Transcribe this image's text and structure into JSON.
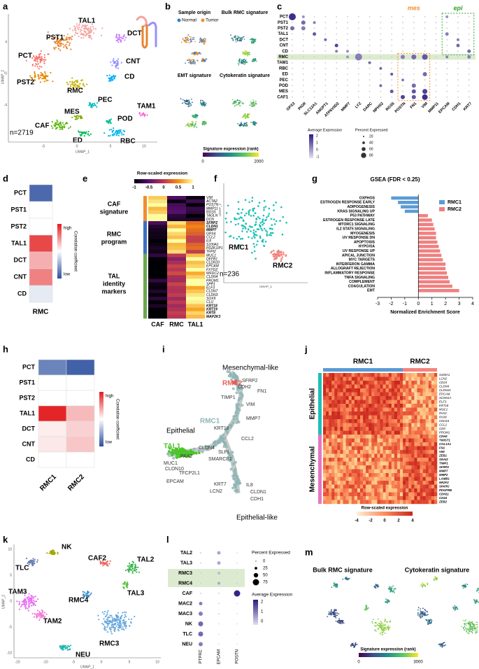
{
  "figure": {
    "letters": [
      "a",
      "b",
      "c",
      "d",
      "e",
      "f",
      "g",
      "h",
      "i",
      "j",
      "k",
      "l",
      "m"
    ],
    "a": {
      "clusters": [
        "PCT",
        "PST1",
        "TAL1",
        "DCT",
        "PST2",
        "RMC",
        "CNT",
        "CD",
        "PEC",
        "TAM1",
        "MES",
        "CAF",
        "POD",
        "ED",
        "RBC"
      ],
      "n": "n=2719",
      "xlabel": "UMAP_1",
      "ylabel": "UMAP_2",
      "xticks": [
        "-5",
        "0",
        "5",
        "10"
      ],
      "yticks": [
        "4",
        "0",
        "-4"
      ]
    },
    "b": {
      "titles": [
        "Sample origin",
        "Bulk RMC signature",
        "EMT signature",
        "Cytokeratin signature"
      ],
      "legend": [
        "Normal",
        "Tumor"
      ],
      "colorbar_title": "Signature expression (rank)",
      "colorbar_ticks": [
        "0",
        "2000"
      ]
    },
    "c": {
      "rows": [
        "PCT",
        "PST1",
        "PST2",
        "TAL1",
        "DCT",
        "CNT",
        "CD",
        "RMC",
        "TAM1",
        "RBC",
        "ED",
        "PEC",
        "POD",
        "MES",
        "CAF1"
      ],
      "genes": [
        "GPX3",
        "PIGR",
        "SLC12A1",
        "ANGPT1",
        "ATP6V0D2",
        "MMP7",
        "LYZ",
        "DARC",
        "NPHS2",
        "RGS5",
        "POSTN",
        "FN1",
        "VIM",
        "MMP11",
        "EPCAM",
        "CDH1",
        "KRT7"
      ],
      "mes": "mes",
      "epi": "epi",
      "avg_title": "Average Expression",
      "avg_ticks": [
        "2",
        "1",
        "0",
        "-1"
      ],
      "pct_title": "Percent Expressed",
      "pct_ticks": [
        "20",
        "40",
        "60",
        "80"
      ]
    },
    "e": {
      "colorbar_title": "Row-scaled expression",
      "colorbar_ticks": [
        "-1",
        "-0.5",
        "0",
        "0.5",
        "1"
      ],
      "groups": [
        [
          "CAF",
          "signature"
        ],
        [
          "RMC",
          "program"
        ],
        [
          "TAL",
          "identity",
          "markers"
        ]
      ],
      "columns": [
        "CAF",
        "RMC",
        "TAL1"
      ],
      "genes": [
        "VIM",
        "ACTA2",
        "POSTN",
        "MMP11",
        "RGS5",
        "TAGLN",
        "DCN",
        "SFRP2",
        "CLDN1",
        "MMP7",
        "GPX4",
        "CCL2",
        "IL8",
        "S100A1",
        "PDZK1IP1",
        "TFPI2",
        "MUC1",
        "DEFB1",
        "CLDN10",
        "EPCAM",
        "FXYD2",
        "WFDC2",
        "CLDN4",
        "PROM1",
        "SPP1",
        "ELF3",
        "CLDN7",
        "CLDN3",
        "SOX9",
        "CLU",
        "KRT18",
        "KRT19",
        "KRT8",
        "MAP2K3"
      ]
    },
    "f": {
      "labels": [
        "RMC1",
        "RMC2"
      ],
      "n": "n=236",
      "xlabel": "UMAP_1",
      "ylabel": "UMAP_2"
    },
    "i": {
      "labels": [
        "Mesenchymal-like",
        "RMC2",
        "SFRP2",
        "CDH2",
        "FN1",
        "TIMP1",
        "VIM",
        "MMP7",
        "RMC1",
        "CCL2",
        "KRT18",
        "Epithelial",
        "TAL1",
        "PAX2",
        "CLDN4",
        "MUC1",
        "CLDN10",
        "TFCP2L1",
        "SMARCB1",
        "SLPI",
        "EPCAM",
        "KRT7",
        "LCN2",
        "IL8",
        "CLDN1",
        "CDH1",
        "Epithelial-like"
      ]
    },
    "j": {
      "columns": [
        "RMC1",
        "RMC2"
      ],
      "groups": [
        "Epithelial",
        "Mesenchymal"
      ],
      "genes": [
        "S100A1",
        "LCN2",
        "CD24",
        "CLDN4",
        "CLDN10",
        "EPCAM",
        "SCNN1A",
        "ELF3",
        "KRT18",
        "MUC1",
        "PAX2",
        "PAX8",
        "CDH16",
        "CCL2",
        "CD9",
        "PROM1",
        "CDH2",
        "TWIST1",
        "COL1A1",
        "FN1",
        "VIM",
        "ZEB1",
        "SNAI2",
        "TIMP1",
        "SFRP2",
        "MMP7",
        "MMP2",
        "LAMB1",
        "NR2F2",
        "SPARC",
        "PDGFRB",
        "CDH11",
        "CD44",
        "ZEB2"
      ],
      "colorbar_title": "Row-scaled expression",
      "colorbar_ticks": [
        "-4",
        "-2",
        "0",
        "2",
        "4"
      ]
    },
    "k": {
      "clusters": [
        "NK",
        "TLC",
        "CAF2",
        "TAL2",
        "TAL3",
        "TAM3",
        "TAM2",
        "RMC4",
        "RMC3",
        "NEU"
      ],
      "xlabel": "UMAP_1",
      "ylabel": "UMAP_2",
      "xticks": [
        "-15",
        "-10",
        "-5",
        "0",
        "5",
        "10"
      ],
      "yticks": [
        "10",
        "5",
        "0",
        "-5",
        "-10"
      ]
    },
    "l": {
      "rows": [
        "TAL2",
        "TAL3",
        "RMC3",
        "RMC4",
        "CAF",
        "MAC2",
        "MAC3",
        "NK",
        "TLC",
        "NEU"
      ],
      "genes": [
        "PTPRC",
        "EPCAM",
        "POSTN"
      ],
      "pct_title": "Percent Expressed",
      "pct_ticks": [
        "0",
        "25",
        "50",
        "75"
      ],
      "avg_title": "Average Expression",
      "avg_ticks": [
        "2",
        "1",
        "0"
      ]
    },
    "m": {
      "titles": [
        "Bulk RMC signature",
        "Cytokeratin signature"
      ],
      "colorbar_title": "Signature expression (rank)",
      "colorbar_ticks": [
        "0",
        "3000"
      ]
    }
  },
  "chart_data": [
    {
      "type": "bar",
      "orientation": "horizontal",
      "title": "GSEA (FDR < 0.25)",
      "categories": [
        "OXPHOS",
        "ESTROGEN RESPONSE EARLY",
        "ADIPOGENESIS",
        "KRAS SIGNALING UP",
        "P53 PATHWAY",
        "ESTROGEN RESPONSE LATE",
        "MTORC1 SIGNALING",
        "IL2 STAT5 SIGNALING",
        "MYOGENESIS",
        "UV RESPONSE DN",
        "APOPTOSIS",
        "HYPOXIA",
        "UV RESPONSE UP",
        "APICAL JUNCTION",
        "MYC TARGETS",
        "INTERFERON GAMMA",
        "ALLOGRAFT REJECTION",
        "INFLAMMATORY RESPONSE",
        "TNFA SIGNALING",
        "COMPLEMENT",
        "COAGULATION",
        "EMT"
      ],
      "series": [
        {
          "name": "RMC1",
          "color": "#5b9bd5",
          "values": [
            -2.0,
            -1.5,
            -1.3,
            -1.0,
            null,
            null,
            null,
            null,
            null,
            null,
            null,
            null,
            null,
            null,
            null,
            null,
            null,
            null,
            null,
            null,
            null,
            null
          ]
        },
        {
          "name": "RMC2",
          "color": "#f08080",
          "values": [
            null,
            null,
            null,
            null,
            0.7,
            1.0,
            1.1,
            1.2,
            1.3,
            1.3,
            1.4,
            1.5,
            1.6,
            1.7,
            1.8,
            2.0,
            2.0,
            2.1,
            2.2,
            2.3,
            2.5,
            3.0
          ]
        }
      ],
      "xlim": [
        -3,
        4
      ],
      "xticks": [
        -3,
        -2,
        -1,
        0,
        1,
        2,
        3,
        4
      ],
      "xlabel": "Normalized Enrichment Score",
      "legend": "upper right"
    },
    {
      "type": "heatmap",
      "rows": [
        "PCT",
        "PST1",
        "PST2",
        "TAL1",
        "DCT",
        "CNT",
        "CD"
      ],
      "columns": [
        "RMC"
      ],
      "values": [
        [
          -0.85
        ],
        [
          0
        ],
        [
          0
        ],
        [
          0.8
        ],
        [
          0.35
        ],
        [
          0.55
        ],
        [
          -0.12
        ]
      ],
      "legend_title": "Correlation coefficient",
      "legend_labels": [
        "high",
        "low"
      ]
    },
    {
      "type": "heatmap",
      "rows": [
        "PCT",
        "PST1",
        "PST2",
        "TAL1",
        "DCT",
        "CNT",
        "CD"
      ],
      "columns": [
        "RMC1",
        "RMC2"
      ],
      "values": [
        [
          -0.7,
          -0.9
        ],
        [
          0,
          0
        ],
        [
          0,
          0
        ],
        [
          0.95,
          0.3
        ],
        [
          0.08,
          0.2
        ],
        [
          0.1,
          0.25
        ],
        [
          0,
          0
        ]
      ],
      "legend_title": "Correlation coefficient",
      "legend_labels": [
        "high",
        "low"
      ]
    }
  ]
}
